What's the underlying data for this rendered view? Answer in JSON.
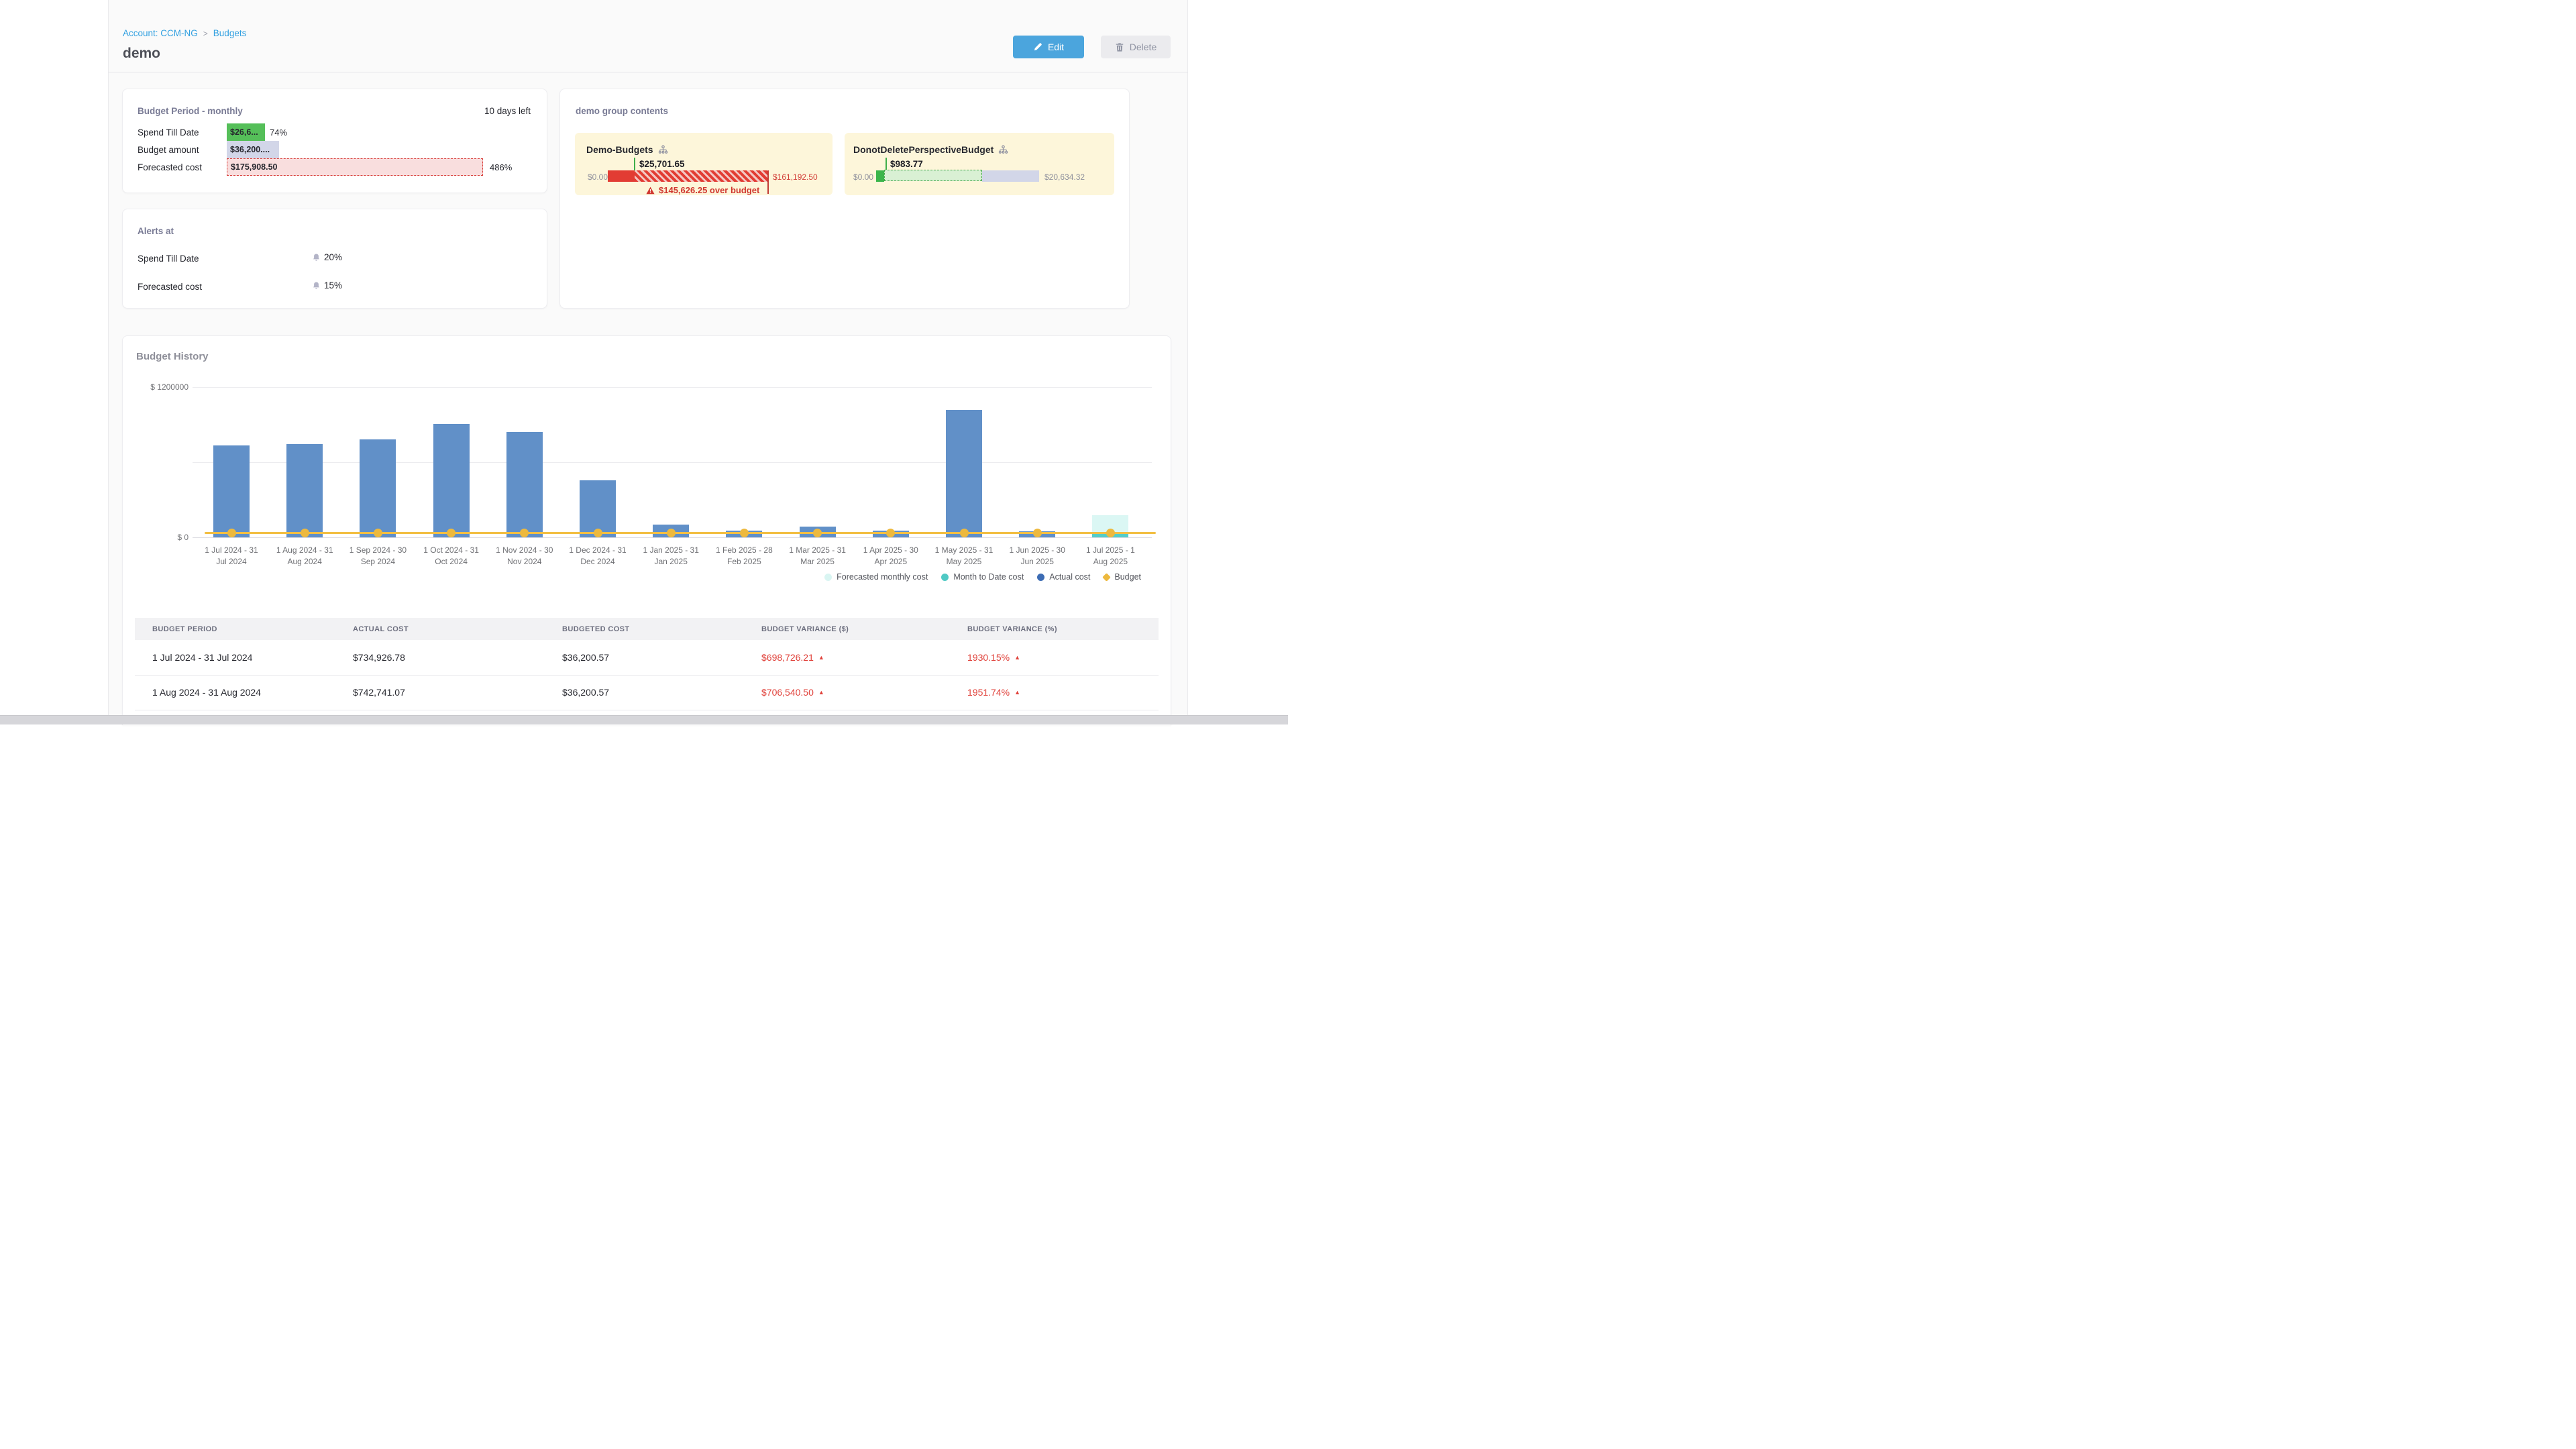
{
  "breadcrumb": {
    "account": "Account: CCM-NG",
    "separator": ">",
    "page": "Budgets"
  },
  "header": {
    "title": "demo",
    "edit_label": "Edit",
    "delete_label": "Delete"
  },
  "budget_period_card": {
    "title": "Budget Period - monthly",
    "days_left": "10 days left",
    "rows": [
      {
        "label": "Spend Till Date",
        "bar_text": "$26,6...",
        "suffix": "74%"
      },
      {
        "label": "Budget amount",
        "bar_text": "$36,200...."
      },
      {
        "label": "Forecasted cost",
        "bar_text": "$175,908.50",
        "suffix": "486%"
      }
    ]
  },
  "alerts_card": {
    "title": "Alerts at",
    "rows": [
      {
        "label": "Spend Till Date",
        "value": "20%"
      },
      {
        "label": "Forecasted cost",
        "value": "15%"
      }
    ]
  },
  "group_card": {
    "title": "demo group contents",
    "budgets": [
      {
        "name": "Demo-Budgets",
        "spend_label": "$25,701.65",
        "min_label": "$0.00",
        "max_label": "$161,192.50",
        "alert_text": "$145,626.25 over budget",
        "status": "over-budget"
      },
      {
        "name": "DonotDeletePerspectiveBudget",
        "spend_label": "$983.77",
        "min_label": "$0.00",
        "max_label": "$20,634.32",
        "status": "under-budget"
      }
    ]
  },
  "budget_history": {
    "title": "Budget History",
    "legend": [
      {
        "label": "Forecasted monthly cost",
        "color": "#d9f5f2",
        "shape": "circle"
      },
      {
        "label": "Month to Date cost",
        "color": "#4fc9c4",
        "shape": "circle"
      },
      {
        "label": "Actual cost",
        "color": "#3d6cb4",
        "shape": "circle"
      },
      {
        "label": "Budget",
        "color": "#edb93e",
        "shape": "diamond"
      }
    ]
  },
  "chart_data": {
    "type": "bar",
    "title": "Budget History",
    "categories": [
      "1 Jul 2024 - 31 Jul 2024",
      "1 Aug 2024 - 31 Aug 2024",
      "1 Sep 2024 - 30 Sep 2024",
      "1 Oct 2024 - 31 Oct 2024",
      "1 Nov 2024 - 30 Nov 2024",
      "1 Dec 2024 - 31 Dec 2024",
      "1 Jan 2025 - 31 Jan 2025",
      "1 Feb 2025 - 28 Feb 2025",
      "1 Mar 2025 - 31 Mar 2025",
      "1 Apr 2025 - 30 Apr 2025",
      "1 May 2025 - 31 May 2025",
      "1 Jun 2025 - 30 Jun 2025",
      "1 Jul 2025 - 1 Aug 2025"
    ],
    "x_tick_lines": [
      [
        "1 Jul 2024 - 31",
        "Jul 2024"
      ],
      [
        "1 Aug 2024 - 31",
        "Aug 2024"
      ],
      [
        "1 Sep 2024 - 30",
        "Sep 2024"
      ],
      [
        "1 Oct 2024 - 31",
        "Oct 2024"
      ],
      [
        "1 Nov 2024 - 30",
        "Nov 2024"
      ],
      [
        "1 Dec 2024 - 31",
        "Dec 2024"
      ],
      [
        "1 Jan 2025 - 31",
        "Jan 2025"
      ],
      [
        "1 Feb 2025 - 28",
        "Feb 2025"
      ],
      [
        "1 Mar 2025 - 31",
        "Mar 2025"
      ],
      [
        "1 Apr 2025 - 30",
        "Apr 2025"
      ],
      [
        "1 May 2025 - 31",
        "May 2025"
      ],
      [
        "1 Jun 2025 - 30",
        "Jun 2025"
      ],
      [
        "1 Jul 2025 - 1",
        "Aug 2025"
      ]
    ],
    "series": [
      {
        "name": "Actual cost",
        "type": "bar",
        "color": "#6190c8",
        "values": [
          734926.78,
          742741.07,
          783000,
          906000,
          842000,
          458000,
          103000,
          52000,
          84000,
          52000,
          1018000,
          46000,
          null
        ]
      },
      {
        "name": "Month to Date cost",
        "type": "bar",
        "color": "#4fc9c4",
        "values": [
          null,
          null,
          null,
          null,
          null,
          null,
          null,
          null,
          null,
          null,
          null,
          null,
          26600
        ]
      },
      {
        "name": "Forecasted monthly cost",
        "type": "bar",
        "color": "#dbf7f4",
        "values": [
          null,
          null,
          null,
          null,
          null,
          null,
          null,
          null,
          null,
          null,
          null,
          null,
          175908.5
        ]
      },
      {
        "name": "Budget",
        "type": "line",
        "color": "#f2bf44",
        "values": [
          36200.57,
          36200.57,
          36200.57,
          36200.57,
          36200.57,
          36200.57,
          36200.57,
          36200.57,
          36200.57,
          36200.57,
          36200.57,
          36200.57,
          36200.57
        ]
      }
    ],
    "budget_value": 36200.57,
    "ylabel_ticks": [
      "$ 1200000",
      "$ 0"
    ],
    "ylim": [
      0,
      1200000
    ],
    "grid": true,
    "legend_position": "bottom-right"
  },
  "table": {
    "columns": [
      "BUDGET PERIOD",
      "ACTUAL COST",
      "BUDGETED COST",
      "BUDGET VARIANCE ($)",
      "BUDGET VARIANCE (%)"
    ],
    "rows": [
      {
        "period": "1 Jul 2024 - 31 Jul 2024",
        "actual": "$734,926.78",
        "budgeted": "$36,200.57",
        "variance_usd": "$698,726.21",
        "variance_pct": "1930.15%",
        "direction": "up"
      },
      {
        "period": "1 Aug 2024 - 31 Aug 2024",
        "actual": "$742,741.07",
        "budgeted": "$36,200.57",
        "variance_usd": "$706,540.50",
        "variance_pct": "1951.74%",
        "direction": "up"
      }
    ]
  },
  "colors": {
    "link_blue": "#2f9fe0",
    "edit_button": "#4ba5dd",
    "bar_actual": "#6190c8",
    "budget_line": "#f2bf44",
    "alert_red": "#d0362f",
    "green": "#4db952",
    "lavender": "#d2d6e8",
    "mini_card_bg": "#fdf6da"
  }
}
